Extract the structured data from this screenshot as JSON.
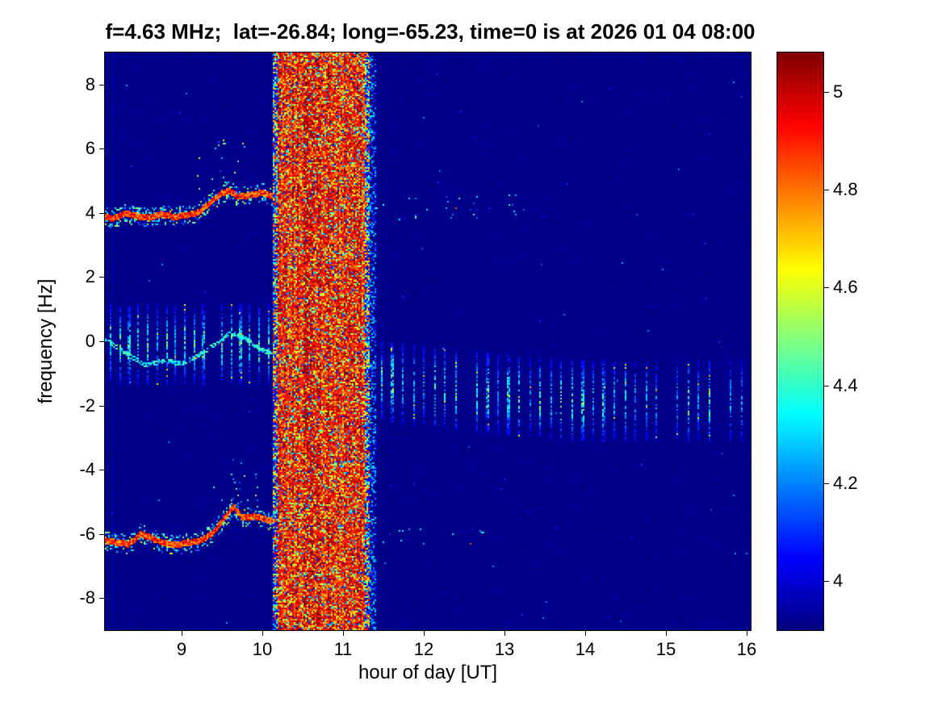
{
  "chart_data": {
    "type": "heatmap",
    "title": "f=4.63 MHz;  lat=-26.84; long=-65.23, time=0 is at 2026 01 04 08:00",
    "xlabel": "hour of day [UT]",
    "ylabel": "frequency [Hz]",
    "xlim": [
      8.05,
      16.05
    ],
    "ylim": [
      -9,
      9
    ],
    "xticks": [
      9,
      10,
      11,
      12,
      13,
      14,
      15,
      16
    ],
    "yticks": [
      8,
      6,
      4,
      2,
      0,
      -2,
      -4,
      -6,
      -8
    ],
    "colorbar": {
      "colormap": "jet",
      "min": 3.9,
      "max": 5.08,
      "ticks": [
        "4",
        "4.2",
        "4.4",
        "4.6",
        "4.8",
        "5"
      ]
    },
    "background_value": 3.9,
    "background_color": "#00008f",
    "features": {
      "interference_band": {
        "description": "broadband saturated interference covering all Doppler frequencies between ~10:10 and ~11:20 UT",
        "fringe_left": [
          10.14,
          10.2
        ],
        "core": [
          10.2,
          11.27
        ],
        "fringe_right": [
          11.27,
          11.33
        ],
        "outer_right": [
          11.33,
          11.4
        ],
        "core_value_range": [
          4.55,
          5.08
        ]
      },
      "upper_trace": {
        "description": "Doppler trace near +4 Hz before interference band, peaking ~4.7 Hz near 09:35",
        "value": 4.9,
        "end": 10.2,
        "points": [
          [
            8.05,
            3.9
          ],
          [
            8.15,
            3.82
          ],
          [
            8.3,
            3.98
          ],
          [
            8.45,
            3.9
          ],
          [
            8.6,
            3.84
          ],
          [
            8.75,
            3.96
          ],
          [
            8.9,
            3.88
          ],
          [
            9.05,
            3.92
          ],
          [
            9.2,
            4.0
          ],
          [
            9.35,
            4.3
          ],
          [
            9.5,
            4.62
          ],
          [
            9.6,
            4.68
          ],
          [
            9.7,
            4.5
          ],
          [
            9.85,
            4.55
          ],
          [
            10.0,
            4.62
          ],
          [
            10.2,
            4.45
          ]
        ]
      },
      "lower_trace": {
        "description": "Doppler trace near -6 Hz before interference band, rising to ~-5.2 Hz near 09:40",
        "value": 4.9,
        "end": 10.2,
        "points": [
          [
            8.05,
            -6.2
          ],
          [
            8.2,
            -6.28
          ],
          [
            8.35,
            -6.32
          ],
          [
            8.5,
            -6.0
          ],
          [
            8.62,
            -6.12
          ],
          [
            8.78,
            -6.3
          ],
          [
            8.95,
            -6.33
          ],
          [
            9.1,
            -6.28
          ],
          [
            9.25,
            -6.2
          ],
          [
            9.4,
            -5.95
          ],
          [
            9.55,
            -5.45
          ],
          [
            9.65,
            -5.15
          ],
          [
            9.75,
            -5.5
          ],
          [
            9.9,
            -5.45
          ],
          [
            10.05,
            -5.55
          ],
          [
            10.2,
            -5.65
          ]
        ]
      },
      "mid_trace": {
        "description": "weak Doppler trace wandering around 0 Hz before the band",
        "value": 4.35,
        "end": 10.2,
        "points": [
          [
            8.05,
            0.05
          ],
          [
            8.3,
            -0.35
          ],
          [
            8.55,
            -0.75
          ],
          [
            8.8,
            -0.6
          ],
          [
            9.0,
            -0.7
          ],
          [
            9.2,
            -0.45
          ],
          [
            9.45,
            -0.05
          ],
          [
            9.6,
            0.25
          ],
          [
            9.75,
            0.15
          ],
          [
            9.95,
            -0.2
          ],
          [
            10.15,
            -0.45
          ]
        ]
      },
      "pulses_left": {
        "description": "periodic vertical pulse bars spanning about -1.3 to +1.1 Hz before the band",
        "start": 8.12,
        "end": 10.14,
        "period": 0.115,
        "freq_center": -0.1,
        "freq_halfwidth": 1.25
      },
      "pulses_right": {
        "description": "periodic vertical pulse bars drifting from about -1.3 to -1.9 Hz after the band",
        "start": 11.48,
        "end": 15.97,
        "period": 0.131,
        "center_start": -1.25,
        "center_end": -1.85,
        "freq_halfwidth": 1.25
      },
      "scatter_regions": [
        {
          "x": [
            9.2,
            9.8
          ],
          "above": "upper",
          "dy": [
            0.25,
            1.7
          ],
          "chance": 0.025
        },
        {
          "x": [
            9.35,
            9.95
          ],
          "above": "lower",
          "dy": [
            0.25,
            1.5
          ],
          "chance": 0.02
        },
        {
          "x": [
            11.4,
            13.25
          ],
          "freq": [
            3.75,
            4.6
          ],
          "chance": 0.02
        },
        {
          "x": [
            11.4,
            12.75
          ],
          "freq": [
            -6.4,
            -5.8
          ],
          "chance": 0.018
        }
      ]
    }
  }
}
